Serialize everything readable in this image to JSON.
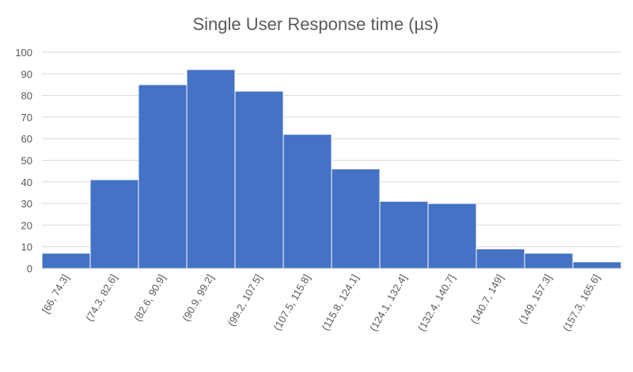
{
  "chart_data": {
    "type": "bar",
    "title": "Single User Response  time (µs)",
    "xlabel": "",
    "ylabel": "",
    "categories": [
      "[66, 74.3]",
      "(74.3, 82.6]",
      "(82.6, 90.9]",
      "(90.9, 99.2]",
      "(99.2, 107.5]",
      "(107.5, 115.8]",
      "(115.8, 124.1]",
      "(124.1, 132.4]",
      "(132.4, 140.7]",
      "(140.7, 149]",
      "(149, 157.3]",
      "(157.3, 165.6]"
    ],
    "values": [
      7,
      41,
      85,
      92,
      82,
      62,
      46,
      31,
      30,
      9,
      7,
      3
    ],
    "ylim": [
      0,
      100
    ],
    "yticks": [
      0,
      10,
      20,
      30,
      40,
      50,
      60,
      70,
      80,
      90,
      100
    ],
    "grid": true,
    "bar_color": "#4472c4"
  }
}
